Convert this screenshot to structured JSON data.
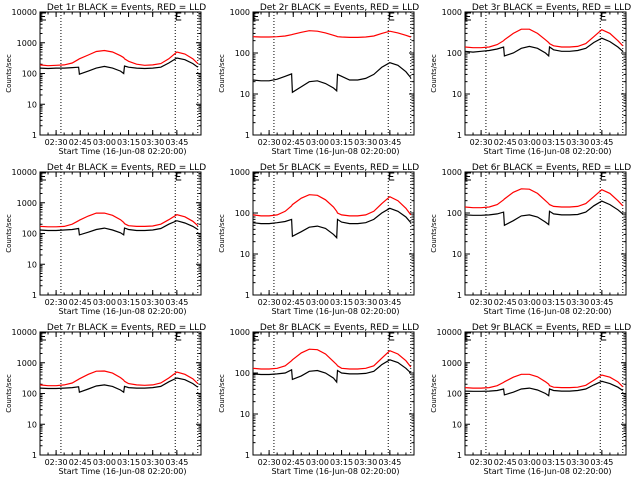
{
  "figure": {
    "xlabel": "Start Time (16-Jun-08 02:20:00)",
    "ylabel": "Counts/sec",
    "colors": {
      "events": "#000000",
      "lld": "#ff0000",
      "axes": "#000000"
    }
  },
  "chart_data": [
    {
      "type": "line",
      "title": "Det 1r BLACK = Events, RED = LLD",
      "xlabel": "Start Time (16-Jun-08 02:20:00)",
      "ylabel": "Counts/sec",
      "yscale": "log",
      "ylim": [
        1,
        10000
      ],
      "yticks": [
        "1",
        "10",
        "100",
        "1000",
        "10000"
      ],
      "xlim_minutes": [
        20,
        120
      ],
      "xticks": [
        "02:30",
        "02:45",
        "03:00",
        "03:15",
        "03:30",
        "03:45"
      ],
      "xtick_minutes": [
        30,
        45,
        60,
        75,
        90,
        105
      ],
      "vlines_minutes": [
        33,
        104,
        118
      ],
      "x_minutes": [
        20,
        25,
        30,
        35,
        40,
        44,
        44.5,
        50,
        55,
        60,
        65,
        70,
        72,
        72.5,
        75,
        80,
        85,
        90,
        95,
        100,
        105,
        110,
        115,
        118
      ],
      "series": [
        {
          "name": "LLD",
          "color": "#ff0000",
          "values": [
            190,
            180,
            185,
            190,
            220,
            290,
            300,
            400,
            520,
            560,
            500,
            380,
            330,
            300,
            250,
            200,
            185,
            190,
            210,
            300,
            500,
            430,
            300,
            210
          ]
        },
        {
          "name": "Events",
          "color": "#000000",
          "values": [
            150,
            145,
            150,
            150,
            155,
            160,
            95,
            120,
            150,
            170,
            150,
            120,
            100,
            175,
            160,
            150,
            145,
            150,
            160,
            220,
            320,
            280,
            210,
            160
          ]
        }
      ]
    },
    {
      "type": "line",
      "title": "Det 2r BLACK = Events, RED = LLD",
      "xlabel": "Start Time (16-Jun-08 02:20:00)",
      "ylabel": "Counts/sec",
      "yscale": "log",
      "ylim": [
        1,
        1000
      ],
      "yticks": [
        "1",
        "10",
        "100",
        "1000"
      ],
      "xlim_minutes": [
        20,
        120
      ],
      "xticks": [
        "02:30",
        "02:45",
        "03:00",
        "03:15",
        "03:30",
        "03:45"
      ],
      "xtick_minutes": [
        30,
        45,
        60,
        75,
        90,
        105
      ],
      "vlines_minutes": [
        33,
        104,
        118
      ],
      "x_minutes": [
        20,
        25,
        30,
        35,
        40,
        44,
        44.5,
        50,
        55,
        60,
        65,
        70,
        72,
        72.5,
        75,
        80,
        85,
        90,
        95,
        100,
        105,
        110,
        115,
        118
      ],
      "series": [
        {
          "name": "LLD",
          "color": "#ff0000",
          "values": [
            250,
            245,
            245,
            250,
            260,
            280,
            285,
            320,
            350,
            340,
            310,
            270,
            255,
            250,
            245,
            240,
            240,
            245,
            260,
            300,
            340,
            310,
            270,
            245
          ]
        },
        {
          "name": "Events",
          "color": "#000000",
          "values": [
            22,
            21,
            21,
            23,
            27,
            31,
            11,
            15,
            20,
            21,
            18,
            14,
            12,
            30,
            27,
            22,
            22,
            24,
            30,
            45,
            58,
            50,
            35,
            25
          ]
        }
      ]
    },
    {
      "type": "line",
      "title": "Det 3r BLACK = Events, RED = LLD",
      "xlabel": "Start Time (16-Jun-08 02:20:00)",
      "ylabel": "Counts/sec",
      "yscale": "log",
      "ylim": [
        1,
        1000
      ],
      "yticks": [
        "1",
        "10",
        "100",
        "1000"
      ],
      "xlim_minutes": [
        20,
        120
      ],
      "xticks": [
        "02:30",
        "02:45",
        "03:00",
        "03:15",
        "03:30",
        "03:45"
      ],
      "xtick_minutes": [
        30,
        45,
        60,
        75,
        90,
        105
      ],
      "vlines_minutes": [
        33,
        104,
        118
      ],
      "x_minutes": [
        20,
        25,
        30,
        35,
        40,
        44,
        44.5,
        50,
        55,
        60,
        65,
        70,
        72,
        72.5,
        75,
        80,
        85,
        90,
        95,
        100,
        105,
        110,
        115,
        118
      ],
      "series": [
        {
          "name": "LLD",
          "color": "#ff0000",
          "values": [
            140,
            135,
            135,
            140,
            160,
            200,
            210,
            300,
            380,
            380,
            300,
            210,
            180,
            170,
            150,
            140,
            140,
            145,
            170,
            250,
            370,
            300,
            200,
            150
          ]
        },
        {
          "name": "Events",
          "color": "#000000",
          "values": [
            110,
            105,
            110,
            115,
            125,
            140,
            85,
            100,
            130,
            145,
            130,
            100,
            85,
            140,
            120,
            110,
            110,
            115,
            130,
            180,
            230,
            190,
            140,
            110
          ]
        }
      ]
    },
    {
      "type": "line",
      "title": "Det 4r BLACK = Events, RED = LLD",
      "xlabel": "Start Time (16-Jun-08 02:20:00)",
      "ylabel": "Counts/sec",
      "yscale": "log",
      "ylim": [
        1,
        10000
      ],
      "yticks": [
        "1",
        "10",
        "100",
        "1000",
        "10000"
      ],
      "xlim_minutes": [
        20,
        120
      ],
      "xticks": [
        "02:30",
        "02:45",
        "03:00",
        "03:15",
        "03:30",
        "03:45"
      ],
      "xtick_minutes": [
        30,
        45,
        60,
        75,
        90,
        105
      ],
      "vlines_minutes": [
        33,
        104,
        118
      ],
      "x_minutes": [
        20,
        25,
        30,
        35,
        40,
        44,
        44.5,
        50,
        55,
        60,
        65,
        70,
        72,
        72.5,
        75,
        80,
        85,
        90,
        95,
        100,
        105,
        110,
        115,
        118
      ],
      "series": [
        {
          "name": "LLD",
          "color": "#ff0000",
          "values": [
            170,
            165,
            165,
            170,
            200,
            260,
            270,
            370,
            460,
            460,
            390,
            280,
            230,
            210,
            180,
            170,
            170,
            175,
            200,
            280,
            410,
            350,
            250,
            180
          ]
        },
        {
          "name": "Events",
          "color": "#000000",
          "values": [
            130,
            125,
            125,
            130,
            135,
            145,
            90,
            110,
            135,
            150,
            130,
            105,
            90,
            150,
            135,
            125,
            125,
            130,
            145,
            200,
            260,
            220,
            170,
            135
          ]
        }
      ]
    },
    {
      "type": "line",
      "title": "Det 5r BLACK = Events, RED = LLD",
      "xlabel": "Start Time (16-Jun-08 02:20:00)",
      "ylabel": "Counts/sec",
      "yscale": "log",
      "ylim": [
        1,
        1000
      ],
      "yticks": [
        "1",
        "10",
        "100",
        "1000"
      ],
      "xlim_minutes": [
        20,
        120
      ],
      "xticks": [
        "02:30",
        "02:45",
        "03:00",
        "03:15",
        "03:30",
        "03:45"
      ],
      "xtick_minutes": [
        30,
        45,
        60,
        75,
        90,
        105
      ],
      "vlines_minutes": [
        33,
        104,
        118
      ],
      "x_minutes": [
        20,
        25,
        30,
        35,
        40,
        44,
        44.5,
        50,
        55,
        60,
        65,
        70,
        72,
        72.5,
        75,
        80,
        85,
        90,
        95,
        100,
        105,
        110,
        115,
        118
      ],
      "series": [
        {
          "name": "LLD",
          "color": "#ff0000",
          "values": [
            90,
            85,
            85,
            90,
            110,
            150,
            160,
            230,
            280,
            270,
            210,
            140,
            110,
            100,
            90,
            85,
            85,
            90,
            110,
            170,
            250,
            200,
            130,
            90
          ]
        },
        {
          "name": "Events",
          "color": "#000000",
          "values": [
            58,
            55,
            55,
            58,
            62,
            70,
            27,
            35,
            45,
            48,
            42,
            30,
            25,
            70,
            60,
            55,
            55,
            58,
            70,
            100,
            130,
            110,
            80,
            58
          ]
        }
      ]
    },
    {
      "type": "line",
      "title": "Det 6r BLACK = Events, RED = LLD",
      "xlabel": "Start Time (16-Jun-08 02:20:00)",
      "ylabel": "Counts/sec",
      "yscale": "log",
      "ylim": [
        1,
        1000
      ],
      "yticks": [
        "1",
        "10",
        "100",
        "1000"
      ],
      "xlim_minutes": [
        20,
        120
      ],
      "xticks": [
        "02:30",
        "02:45",
        "03:00",
        "03:15",
        "03:30",
        "03:45"
      ],
      "xtick_minutes": [
        30,
        45,
        60,
        75,
        90,
        105
      ],
      "vlines_minutes": [
        33,
        104,
        118
      ],
      "x_minutes": [
        20,
        25,
        30,
        35,
        40,
        44,
        44.5,
        50,
        55,
        60,
        65,
        70,
        72,
        72.5,
        75,
        80,
        85,
        90,
        95,
        100,
        105,
        110,
        115,
        118
      ],
      "series": [
        {
          "name": "LLD",
          "color": "#ff0000",
          "values": [
            140,
            135,
            135,
            140,
            160,
            210,
            220,
            320,
            390,
            380,
            300,
            200,
            170,
            160,
            145,
            140,
            140,
            145,
            170,
            250,
            370,
            300,
            200,
            150
          ]
        },
        {
          "name": "Events",
          "color": "#000000",
          "values": [
            90,
            88,
            88,
            90,
            95,
            105,
            50,
            65,
            85,
            90,
            80,
            60,
            52,
            110,
            95,
            90,
            90,
            92,
            105,
            150,
            195,
            160,
            120,
            95
          ]
        }
      ]
    },
    {
      "type": "line",
      "title": "Det 7r BLACK = Events, RED = LLD",
      "xlabel": "Start Time (16-Jun-08 02:20:00)",
      "ylabel": "Counts/sec",
      "yscale": "log",
      "ylim": [
        1,
        10000
      ],
      "yticks": [
        "1",
        "10",
        "100",
        "1000",
        "10000"
      ],
      "xlim_minutes": [
        20,
        120
      ],
      "xticks": [
        "02:30",
        "02:45",
        "03:00",
        "03:15",
        "03:30",
        "03:45"
      ],
      "xtick_minutes": [
        30,
        45,
        60,
        75,
        90,
        105
      ],
      "vlines_minutes": [
        33,
        104,
        118
      ],
      "x_minutes": [
        20,
        25,
        30,
        35,
        40,
        44,
        44.5,
        50,
        55,
        60,
        65,
        70,
        72,
        72.5,
        75,
        80,
        85,
        90,
        95,
        100,
        105,
        110,
        115,
        118
      ],
      "series": [
        {
          "name": "LLD",
          "color": "#ff0000",
          "values": [
            190,
            180,
            180,
            190,
            220,
            290,
            300,
            420,
            530,
            540,
            460,
            330,
            270,
            250,
            210,
            190,
            185,
            190,
            220,
            320,
            500,
            420,
            300,
            210
          ]
        },
        {
          "name": "Events",
          "color": "#000000",
          "values": [
            150,
            145,
            145,
            150,
            155,
            165,
            110,
            140,
            175,
            190,
            170,
            130,
            110,
            170,
            155,
            150,
            150,
            155,
            170,
            240,
            320,
            280,
            210,
            160
          ]
        }
      ]
    },
    {
      "type": "line",
      "title": "Det 8r BLACK = Events, RED = LLD",
      "xlabel": "Start Time (16-Jun-08 02:20:00)",
      "ylabel": "Counts/sec",
      "yscale": "log",
      "ylim": [
        1,
        1000
      ],
      "yticks": [
        "1",
        "10",
        "100",
        "1000"
      ],
      "xlim_minutes": [
        20,
        120
      ],
      "xticks": [
        "02:30",
        "02:45",
        "03:00",
        "03:15",
        "03:30",
        "03:45"
      ],
      "xtick_minutes": [
        30,
        45,
        60,
        75,
        90,
        105
      ],
      "vlines_minutes": [
        33,
        104,
        118
      ],
      "x_minutes": [
        20,
        25,
        30,
        35,
        40,
        44,
        44.5,
        50,
        55,
        60,
        65,
        70,
        72,
        72.5,
        75,
        80,
        85,
        90,
        95,
        100,
        105,
        110,
        115,
        118
      ],
      "series": [
        {
          "name": "LLD",
          "color": "#ff0000",
          "values": [
            130,
            125,
            125,
            130,
            150,
            200,
            210,
            310,
            380,
            370,
            290,
            190,
            160,
            150,
            130,
            125,
            125,
            130,
            150,
            230,
            350,
            290,
            200,
            140
          ]
        },
        {
          "name": "Events",
          "color": "#000000",
          "values": [
            95,
            92,
            92,
            95,
            100,
            120,
            70,
            85,
            110,
            115,
            100,
            75,
            60,
            115,
            100,
            95,
            95,
            98,
            110,
            160,
            210,
            180,
            130,
            100
          ]
        }
      ]
    },
    {
      "type": "line",
      "title": "Det 9r BLACK = Events, RED = LLD",
      "xlabel": "Start Time (16-Jun-08 02:20:00)",
      "ylabel": "Counts/sec",
      "yscale": "log",
      "ylim": [
        1,
        10000
      ],
      "yticks": [
        "1",
        "10",
        "100",
        "1000",
        "10000"
      ],
      "xlim_minutes": [
        20,
        120
      ],
      "xticks": [
        "02:30",
        "02:45",
        "03:00",
        "03:15",
        "03:30",
        "03:45"
      ],
      "xtick_minutes": [
        30,
        45,
        60,
        75,
        90,
        105
      ],
      "vlines_minutes": [
        33,
        104,
        118
      ],
      "x_minutes": [
        20,
        25,
        30,
        35,
        40,
        44,
        44.5,
        50,
        55,
        60,
        65,
        70,
        72,
        72.5,
        75,
        80,
        85,
        90,
        95,
        100,
        105,
        110,
        115,
        118
      ],
      "series": [
        {
          "name": "LLD",
          "color": "#ff0000",
          "values": [
            155,
            150,
            150,
            155,
            180,
            230,
            240,
            340,
            420,
            420,
            350,
            240,
            200,
            180,
            160,
            155,
            155,
            160,
            185,
            270,
            400,
            340,
            240,
            165
          ]
        },
        {
          "name": "Events",
          "color": "#000000",
          "values": [
            120,
            118,
            118,
            120,
            125,
            140,
            90,
            110,
            140,
            150,
            130,
            100,
            85,
            140,
            125,
            120,
            120,
            125,
            140,
            190,
            250,
            210,
            160,
            125
          ]
        }
      ]
    }
  ]
}
